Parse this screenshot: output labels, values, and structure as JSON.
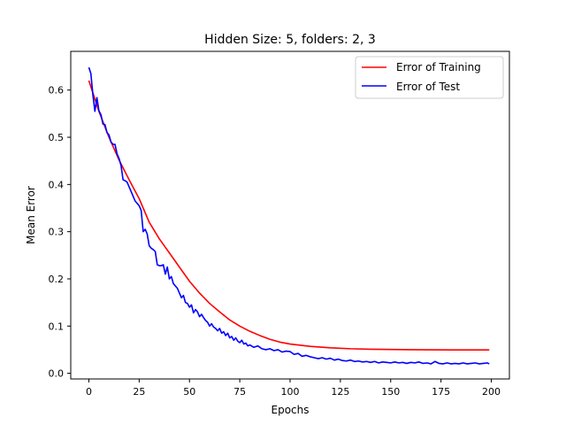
{
  "chart_data": {
    "type": "line",
    "title": "Hidden Size: 5, folders: 2, 3",
    "xlabel": "Epochs",
    "ylabel": "Mean Error",
    "xlim": [
      -9,
      209
    ],
    "ylim": [
      -0.012,
      0.682
    ],
    "xticks": [
      0,
      25,
      50,
      75,
      100,
      125,
      150,
      175,
      200
    ],
    "xtick_labels": [
      "0",
      "25",
      "50",
      "75",
      "100",
      "125",
      "150",
      "175",
      "200"
    ],
    "yticks": [
      0.0,
      0.1,
      0.2,
      0.3,
      0.4,
      0.5,
      0.6
    ],
    "ytick_labels": [
      "0.0",
      "0.1",
      "0.2",
      "0.3",
      "0.4",
      "0.5",
      "0.6"
    ],
    "grid": false,
    "legend": "upper right",
    "series": [
      {
        "name": "Error of Training",
        "color": "#ff0000",
        "points": [
          [
            0,
            0.62
          ],
          [
            5,
            0.555
          ],
          [
            10,
            0.5
          ],
          [
            15,
            0.452
          ],
          [
            20,
            0.41
          ],
          [
            25,
            0.37
          ],
          [
            30,
            0.32
          ],
          [
            35,
            0.285
          ],
          [
            40,
            0.255
          ],
          [
            45,
            0.225
          ],
          [
            50,
            0.195
          ],
          [
            55,
            0.17
          ],
          [
            60,
            0.148
          ],
          [
            65,
            0.13
          ],
          [
            70,
            0.113
          ],
          [
            75,
            0.1
          ],
          [
            80,
            0.089
          ],
          [
            85,
            0.08
          ],
          [
            90,
            0.072
          ],
          [
            95,
            0.066
          ],
          [
            100,
            0.062
          ],
          [
            110,
            0.057
          ],
          [
            120,
            0.054
          ],
          [
            130,
            0.052
          ],
          [
            140,
            0.051
          ],
          [
            150,
            0.0505
          ],
          [
            160,
            0.05
          ],
          [
            170,
            0.0498
          ],
          [
            180,
            0.0496
          ],
          [
            190,
            0.0495
          ],
          [
            199,
            0.0495
          ]
        ]
      },
      {
        "name": "Error of Test",
        "color": "#0000ff",
        "points": [
          [
            0,
            0.648
          ],
          [
            1,
            0.635
          ],
          [
            2,
            0.59
          ],
          [
            3,
            0.555
          ],
          [
            4,
            0.584
          ],
          [
            5,
            0.556
          ],
          [
            6,
            0.548
          ],
          [
            7,
            0.528
          ],
          [
            8,
            0.527
          ],
          [
            9,
            0.51
          ],
          [
            10,
            0.505
          ],
          [
            11,
            0.49
          ],
          [
            12,
            0.485
          ],
          [
            13,
            0.485
          ],
          [
            14,
            0.465
          ],
          [
            15,
            0.455
          ],
          [
            16,
            0.44
          ],
          [
            17,
            0.41
          ],
          [
            18,
            0.408
          ],
          [
            19,
            0.405
          ],
          [
            20,
            0.395
          ],
          [
            21,
            0.385
          ],
          [
            22,
            0.375
          ],
          [
            23,
            0.365
          ],
          [
            24,
            0.36
          ],
          [
            25,
            0.355
          ],
          [
            26,
            0.345
          ],
          [
            27,
            0.3
          ],
          [
            28,
            0.305
          ],
          [
            29,
            0.295
          ],
          [
            30,
            0.27
          ],
          [
            31,
            0.265
          ],
          [
            32,
            0.262
          ],
          [
            33,
            0.258
          ],
          [
            34,
            0.23
          ],
          [
            35,
            0.228
          ],
          [
            36,
            0.228
          ],
          [
            37,
            0.23
          ],
          [
            38,
            0.21
          ],
          [
            39,
            0.225
          ],
          [
            40,
            0.2
          ],
          [
            41,
            0.205
          ],
          [
            42,
            0.19
          ],
          [
            43,
            0.185
          ],
          [
            44,
            0.18
          ],
          [
            45,
            0.17
          ],
          [
            46,
            0.16
          ],
          [
            47,
            0.165
          ],
          [
            48,
            0.15
          ],
          [
            49,
            0.148
          ],
          [
            50,
            0.14
          ],
          [
            51,
            0.145
          ],
          [
            52,
            0.128
          ],
          [
            53,
            0.135
          ],
          [
            54,
            0.13
          ],
          [
            55,
            0.12
          ],
          [
            56,
            0.125
          ],
          [
            57,
            0.118
          ],
          [
            58,
            0.112
          ],
          [
            59,
            0.108
          ],
          [
            60,
            0.1
          ],
          [
            61,
            0.105
          ],
          [
            62,
            0.098
          ],
          [
            63,
            0.095
          ],
          [
            64,
            0.09
          ],
          [
            65,
            0.095
          ],
          [
            66,
            0.085
          ],
          [
            67,
            0.088
          ],
          [
            68,
            0.08
          ],
          [
            69,
            0.085
          ],
          [
            70,
            0.075
          ],
          [
            71,
            0.078
          ],
          [
            72,
            0.07
          ],
          [
            73,
            0.075
          ],
          [
            74,
            0.068
          ],
          [
            75,
            0.065
          ],
          [
            76,
            0.07
          ],
          [
            77,
            0.062
          ],
          [
            78,
            0.064
          ],
          [
            79,
            0.058
          ],
          [
            80,
            0.06
          ],
          [
            82,
            0.055
          ],
          [
            84,
            0.058
          ],
          [
            86,
            0.052
          ],
          [
            88,
            0.05
          ],
          [
            90,
            0.052
          ],
          [
            92,
            0.048
          ],
          [
            94,
            0.05
          ],
          [
            96,
            0.045
          ],
          [
            98,
            0.047
          ],
          [
            100,
            0.046
          ],
          [
            102,
            0.04
          ],
          [
            104,
            0.042
          ],
          [
            106,
            0.036
          ],
          [
            108,
            0.038
          ],
          [
            110,
            0.035
          ],
          [
            112,
            0.033
          ],
          [
            114,
            0.031
          ],
          [
            116,
            0.033
          ],
          [
            118,
            0.03
          ],
          [
            120,
            0.032
          ],
          [
            122,
            0.028
          ],
          [
            124,
            0.03
          ],
          [
            126,
            0.027
          ],
          [
            128,
            0.026
          ],
          [
            130,
            0.028
          ],
          [
            132,
            0.025
          ],
          [
            134,
            0.026
          ],
          [
            136,
            0.024
          ],
          [
            138,
            0.025
          ],
          [
            140,
            0.023
          ],
          [
            142,
            0.025
          ],
          [
            144,
            0.022
          ],
          [
            146,
            0.024
          ],
          [
            148,
            0.023
          ],
          [
            150,
            0.022
          ],
          [
            152,
            0.024
          ],
          [
            154,
            0.022
          ],
          [
            156,
            0.023
          ],
          [
            158,
            0.021
          ],
          [
            160,
            0.023
          ],
          [
            162,
            0.022
          ],
          [
            164,
            0.024
          ],
          [
            166,
            0.021
          ],
          [
            168,
            0.022
          ],
          [
            170,
            0.02
          ],
          [
            172,
            0.025
          ],
          [
            174,
            0.021
          ],
          [
            176,
            0.02
          ],
          [
            178,
            0.022
          ],
          [
            180,
            0.02
          ],
          [
            182,
            0.021
          ],
          [
            184,
            0.02
          ],
          [
            186,
            0.022
          ],
          [
            188,
            0.02
          ],
          [
            190,
            0.021
          ],
          [
            192,
            0.022
          ],
          [
            194,
            0.02
          ],
          [
            196,
            0.021
          ],
          [
            198,
            0.022
          ],
          [
            199,
            0.02
          ]
        ]
      }
    ]
  }
}
